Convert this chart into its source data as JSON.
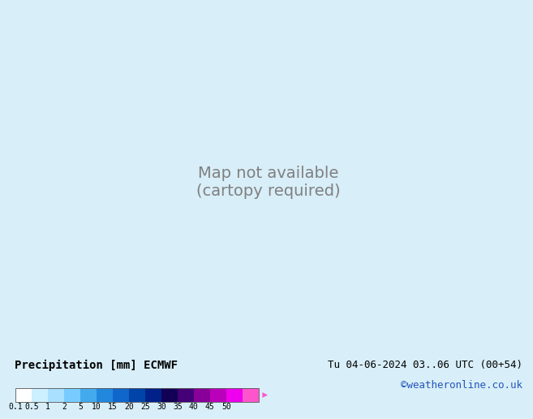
{
  "title_left": "Precipitation [mm] ECMWF",
  "title_right": "Tu 04-06-2024 03..06 UTC (00+54)",
  "credit": "©weatheronline.co.uk",
  "colorbar_ticks": [
    0.1,
    0.5,
    1,
    2,
    5,
    10,
    15,
    20,
    25,
    30,
    35,
    40,
    45,
    50
  ],
  "colorbar_colors": [
    "#ffffff",
    "#ccf0ff",
    "#aae0ff",
    "#77ccff",
    "#44aaee",
    "#2288dd",
    "#1166cc",
    "#0044aa",
    "#002288",
    "#110055",
    "#440077",
    "#880099",
    "#bb00bb",
    "#ee00ee",
    "#ff55cc"
  ],
  "land_color": "#c8ddb0",
  "ocean_color": "#d8eef8",
  "border_color": "#888888",
  "isobar_red": "#cc2222",
  "isobar_blue": "#2244cc",
  "label_fontsize": 9,
  "credit_color": "#2255bb",
  "title_fontsize": 10,
  "cb_label_fontsize": 7,
  "legend_bg": "#dddddd",
  "map_extent": [
    -20,
    80,
    -55,
    45
  ]
}
